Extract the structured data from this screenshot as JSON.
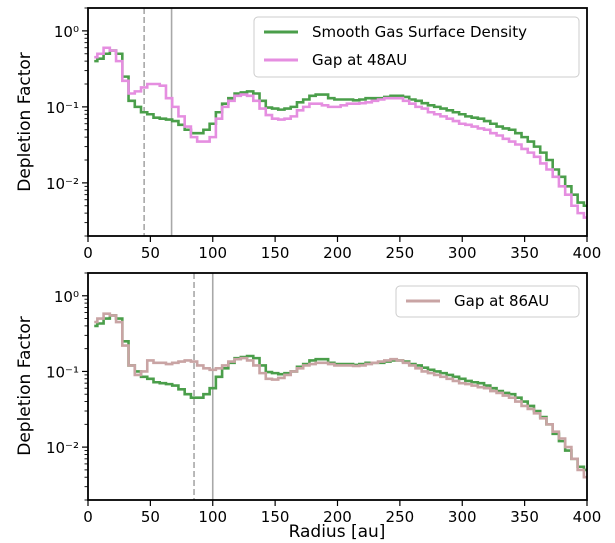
{
  "chart_data": [
    {
      "type": "line",
      "title": "",
      "xlabel": "",
      "ylabel": "Depletion Factor",
      "xlim": [
        0,
        400
      ],
      "ylim": [
        0.002,
        2
      ],
      "yscale": "log",
      "xticks": [
        "0",
        "50",
        "100",
        "150",
        "200",
        "250",
        "300",
        "350",
        "400"
      ],
      "yticks": [
        {
          "value": 1,
          "label": "10⁰"
        },
        {
          "value": 0.1,
          "label": "10⁻¹"
        },
        {
          "value": 0.01,
          "label": "10⁻²"
        }
      ],
      "legend_position": "top-right",
      "vlines": [
        {
          "x": 45,
          "style": "dashed"
        },
        {
          "x": 67,
          "style": "solid"
        }
      ],
      "series": [
        {
          "name": "Smooth Gas Surface Density",
          "color": "#4a9e4a",
          "step": "mid",
          "x": [
            5,
            10,
            15,
            20,
            25,
            30,
            35,
            40,
            45,
            50,
            55,
            60,
            65,
            70,
            75,
            80,
            85,
            90,
            95,
            100,
            105,
            110,
            115,
            120,
            125,
            130,
            135,
            140,
            145,
            150,
            155,
            160,
            165,
            170,
            175,
            180,
            185,
            190,
            195,
            200,
            205,
            210,
            215,
            220,
            225,
            230,
            235,
            240,
            245,
            250,
            255,
            260,
            265,
            270,
            275,
            280,
            285,
            290,
            295,
            300,
            305,
            310,
            315,
            320,
            325,
            330,
            335,
            340,
            345,
            350,
            355,
            360,
            365,
            370,
            375,
            380,
            385,
            390,
            395,
            400
          ],
          "values": [
            0.4,
            0.43,
            0.5,
            0.55,
            0.5,
            0.25,
            0.12,
            0.1,
            0.085,
            0.08,
            0.072,
            0.07,
            0.068,
            0.065,
            0.058,
            0.05,
            0.045,
            0.045,
            0.05,
            0.06,
            0.085,
            0.11,
            0.13,
            0.15,
            0.155,
            0.16,
            0.15,
            0.12,
            0.098,
            0.095,
            0.092,
            0.095,
            0.1,
            0.115,
            0.125,
            0.14,
            0.145,
            0.145,
            0.13,
            0.125,
            0.125,
            0.125,
            0.122,
            0.125,
            0.13,
            0.13,
            0.13,
            0.135,
            0.14,
            0.14,
            0.135,
            0.125,
            0.12,
            0.112,
            0.105,
            0.1,
            0.095,
            0.09,
            0.085,
            0.08,
            0.075,
            0.072,
            0.07,
            0.065,
            0.06,
            0.055,
            0.052,
            0.05,
            0.045,
            0.04,
            0.035,
            0.03,
            0.025,
            0.02,
            0.015,
            0.012,
            0.009,
            0.007,
            0.0055,
            0.005
          ]
        },
        {
          "name": "Gap at 48AU",
          "color": "#e58ee0",
          "step": "mid",
          "x": [
            5,
            10,
            15,
            20,
            25,
            30,
            35,
            40,
            45,
            50,
            55,
            60,
            65,
            70,
            75,
            80,
            85,
            90,
            95,
            100,
            105,
            110,
            115,
            120,
            125,
            130,
            135,
            140,
            145,
            150,
            155,
            160,
            165,
            170,
            175,
            180,
            185,
            190,
            195,
            200,
            205,
            210,
            215,
            220,
            225,
            230,
            235,
            240,
            245,
            250,
            255,
            260,
            265,
            270,
            275,
            280,
            285,
            290,
            295,
            300,
            305,
            310,
            315,
            320,
            325,
            330,
            335,
            340,
            345,
            350,
            355,
            360,
            365,
            370,
            375,
            380,
            385,
            390,
            395,
            400
          ],
          "values": [
            0.45,
            0.5,
            0.6,
            0.55,
            0.4,
            0.22,
            0.15,
            0.16,
            0.18,
            0.2,
            0.2,
            0.19,
            0.13,
            0.1,
            0.075,
            0.055,
            0.04,
            0.035,
            0.035,
            0.04,
            0.07,
            0.1,
            0.12,
            0.14,
            0.145,
            0.14,
            0.12,
            0.095,
            0.078,
            0.07,
            0.068,
            0.07,
            0.075,
            0.09,
            0.1,
            0.11,
            0.11,
            0.105,
            0.1,
            0.1,
            0.105,
            0.11,
            0.11,
            0.112,
            0.115,
            0.12,
            0.125,
            0.13,
            0.13,
            0.13,
            0.12,
            0.11,
            0.1,
            0.095,
            0.085,
            0.08,
            0.075,
            0.07,
            0.065,
            0.06,
            0.058,
            0.055,
            0.052,
            0.05,
            0.045,
            0.042,
            0.038,
            0.035,
            0.032,
            0.028,
            0.025,
            0.022,
            0.018,
            0.015,
            0.012,
            0.009,
            0.007,
            0.005,
            0.004,
            0.0035
          ]
        }
      ]
    },
    {
      "type": "line",
      "title": "",
      "xlabel": "Radius [au]",
      "ylabel": "Depletion Factor",
      "xlim": [
        0,
        400
      ],
      "ylim": [
        0.002,
        2
      ],
      "yscale": "log",
      "xticks": [
        "0",
        "50",
        "100",
        "150",
        "200",
        "250",
        "300",
        "350",
        "400"
      ],
      "yticks": [
        {
          "value": 1,
          "label": "10⁰"
        },
        {
          "value": 0.1,
          "label": "10⁻¹"
        },
        {
          "value": 0.01,
          "label": "10⁻²"
        }
      ],
      "legend_position": "top-right",
      "vlines": [
        {
          "x": 85,
          "style": "dashed"
        },
        {
          "x": 100,
          "style": "solid"
        }
      ],
      "series": [
        {
          "name": "",
          "color": "#4a9e4a",
          "step": "mid",
          "x": [
            5,
            10,
            15,
            20,
            25,
            30,
            35,
            40,
            45,
            50,
            55,
            60,
            65,
            70,
            75,
            80,
            85,
            90,
            95,
            100,
            105,
            110,
            115,
            120,
            125,
            130,
            135,
            140,
            145,
            150,
            155,
            160,
            165,
            170,
            175,
            180,
            185,
            190,
            195,
            200,
            205,
            210,
            215,
            220,
            225,
            230,
            235,
            240,
            245,
            250,
            255,
            260,
            265,
            270,
            275,
            280,
            285,
            290,
            295,
            300,
            305,
            310,
            315,
            320,
            325,
            330,
            335,
            340,
            345,
            350,
            355,
            360,
            365,
            370,
            375,
            380,
            385,
            390,
            395,
            400
          ],
          "values": [
            0.4,
            0.43,
            0.5,
            0.55,
            0.5,
            0.25,
            0.12,
            0.1,
            0.085,
            0.08,
            0.072,
            0.07,
            0.068,
            0.065,
            0.058,
            0.05,
            0.045,
            0.045,
            0.05,
            0.06,
            0.085,
            0.11,
            0.13,
            0.15,
            0.155,
            0.16,
            0.15,
            0.12,
            0.098,
            0.095,
            0.092,
            0.095,
            0.1,
            0.115,
            0.125,
            0.14,
            0.145,
            0.145,
            0.13,
            0.125,
            0.125,
            0.125,
            0.122,
            0.125,
            0.13,
            0.13,
            0.13,
            0.135,
            0.14,
            0.14,
            0.135,
            0.125,
            0.12,
            0.112,
            0.105,
            0.1,
            0.095,
            0.09,
            0.085,
            0.08,
            0.075,
            0.072,
            0.07,
            0.065,
            0.06,
            0.055,
            0.052,
            0.05,
            0.045,
            0.04,
            0.035,
            0.03,
            0.025,
            0.02,
            0.015,
            0.012,
            0.009,
            0.007,
            0.0055,
            0.005
          ]
        },
        {
          "name": "Gap at 86AU",
          "color": "#c9a4a4",
          "step": "mid",
          "x": [
            5,
            10,
            15,
            20,
            25,
            30,
            35,
            40,
            45,
            50,
            55,
            60,
            65,
            70,
            75,
            80,
            85,
            90,
            95,
            100,
            105,
            110,
            115,
            120,
            125,
            130,
            135,
            140,
            145,
            150,
            155,
            160,
            165,
            170,
            175,
            180,
            185,
            190,
            195,
            200,
            205,
            210,
            215,
            220,
            225,
            230,
            235,
            240,
            245,
            250,
            255,
            260,
            265,
            270,
            275,
            280,
            285,
            290,
            295,
            300,
            305,
            310,
            315,
            320,
            325,
            330,
            335,
            340,
            345,
            350,
            355,
            360,
            365,
            370,
            375,
            380,
            385,
            390,
            395,
            400
          ],
          "values": [
            0.45,
            0.5,
            0.58,
            0.55,
            0.45,
            0.22,
            0.12,
            0.09,
            0.1,
            0.14,
            0.13,
            0.13,
            0.125,
            0.13,
            0.135,
            0.14,
            0.135,
            0.12,
            0.11,
            0.105,
            0.11,
            0.12,
            0.135,
            0.145,
            0.15,
            0.14,
            0.12,
            0.095,
            0.08,
            0.078,
            0.082,
            0.09,
            0.1,
            0.11,
            0.12,
            0.125,
            0.13,
            0.13,
            0.125,
            0.12,
            0.12,
            0.12,
            0.118,
            0.12,
            0.125,
            0.13,
            0.135,
            0.14,
            0.145,
            0.14,
            0.13,
            0.12,
            0.11,
            0.1,
            0.095,
            0.09,
            0.085,
            0.08,
            0.075,
            0.07,
            0.068,
            0.065,
            0.062,
            0.06,
            0.055,
            0.052,
            0.048,
            0.045,
            0.04,
            0.035,
            0.032,
            0.028,
            0.024,
            0.02,
            0.016,
            0.013,
            0.01,
            0.007,
            0.005,
            0.004
          ]
        }
      ]
    }
  ]
}
